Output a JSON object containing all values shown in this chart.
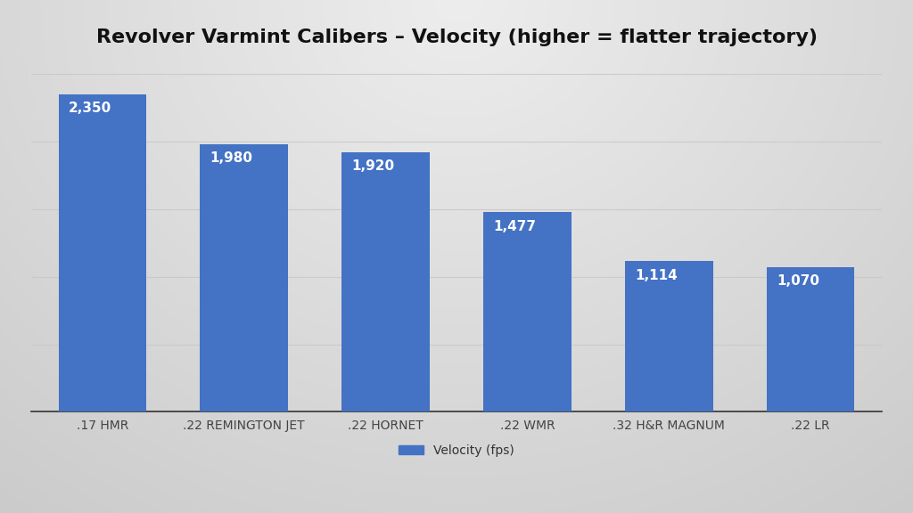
{
  "title": "Revolver Varmint Calibers – Velocity (higher = flatter trajectory)",
  "categories": [
    ".17 HMR",
    ".22 REMINGTON JET",
    ".22 HORNET",
    ".22 WMR",
    ".32 H&R MAGNUM",
    ".22 LR"
  ],
  "values": [
    2350,
    1980,
    1920,
    1477,
    1114,
    1070
  ],
  "bar_color": "#4472C4",
  "label_color": "#FFFFFF",
  "title_fontsize": 16,
  "label_fontsize": 11,
  "xtick_fontsize": 10,
  "legend_label": "Velocity (fps)",
  "ylim": [
    0,
    2600
  ],
  "bar_width": 0.62,
  "grid_color": "#c8c8c8",
  "grid_linewidth": 0.8,
  "bg_light": "#e8e8e8",
  "bg_dark": "#c0c0c0",
  "fig_bg": "#c8c8c8"
}
